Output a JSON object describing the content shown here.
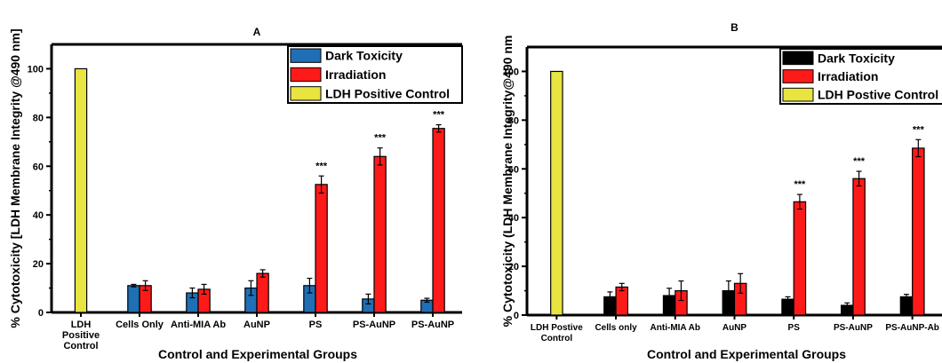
{
  "chart_data": [
    {
      "type": "bar",
      "title": "A",
      "xlabel": "Control and Experimental Groups",
      "ylabel": "% Cytotoxicity [LDH Membrane Integrity @490 nm]",
      "ylim": [
        0,
        110
      ],
      "yticks": [
        0,
        20,
        40,
        60,
        80,
        100
      ],
      "categories": [
        "LDH Positive Control",
        "Cells Only",
        "Anti-MIA Ab",
        "AuNP",
        "PS",
        "PS-AuNP",
        "PS-AuNP"
      ],
      "series": [
        {
          "name": "Dark Toxicity",
          "color": "#1f6fb4",
          "values": [
            null,
            11,
            8,
            10,
            11,
            5.5,
            5
          ],
          "errors": [
            null,
            0.5,
            2,
            3,
            3,
            2,
            0.8
          ]
        },
        {
          "name": "Irradiation",
          "color": "#ff1a1a",
          "values": [
            null,
            11,
            9.5,
            16,
            52.5,
            64,
            75.5
          ],
          "errors": [
            null,
            2,
            2,
            1.5,
            3.5,
            3.5,
            1.5
          ]
        },
        {
          "name": "LDH Positive Control",
          "color": "#e8e440",
          "values": [
            100,
            null,
            null,
            null,
            null,
            null,
            null
          ],
          "errors": [
            null,
            null,
            null,
            null,
            null,
            null,
            null
          ]
        }
      ],
      "annotations": [
        {
          "category_index": 4,
          "text": "***"
        },
        {
          "category_index": 5,
          "text": "***"
        },
        {
          "category_index": 6,
          "text": "***"
        }
      ],
      "legend": "top-right",
      "grid": false
    },
    {
      "type": "bar",
      "title": "B",
      "xlabel": "Control and Experimental Groups",
      "ylabel": "% Cytotoxicity (LDH Membrane Integrity@490 nm",
      "ylim": [
        0,
        110
      ],
      "yticks": [
        0,
        20,
        40,
        60,
        80,
        100
      ],
      "categories": [
        "LDH Postive Control",
        "Cells only",
        "Anti-MIA Ab",
        "AuNP",
        "PS",
        "PS-AuNP",
        "PS-AuNP-Ab"
      ],
      "series": [
        {
          "name": "Dark Toxicity",
          "color": "#000000",
          "values": [
            null,
            7.5,
            8,
            10,
            6.5,
            4,
            7.5
          ],
          "errors": [
            null,
            2,
            3,
            4,
            1,
            1,
            1
          ]
        },
        {
          "name": "Irradiation",
          "color": "#ff1a1a",
          "values": [
            null,
            11.5,
            10,
            13,
            46.5,
            56,
            68.5
          ],
          "errors": [
            null,
            1.5,
            4,
            4,
            3,
            3,
            3.5
          ]
        },
        {
          "name": "LDH Postive Control",
          "color": "#e8e440",
          "values": [
            100,
            null,
            null,
            null,
            null,
            null,
            null
          ],
          "errors": [
            null,
            null,
            null,
            null,
            null,
            null,
            null
          ]
        }
      ],
      "annotations": [
        {
          "category_index": 4,
          "text": "***"
        },
        {
          "category_index": 5,
          "text": "***"
        },
        {
          "category_index": 6,
          "text": "***"
        }
      ],
      "legend": "top-right",
      "grid": false
    }
  ]
}
